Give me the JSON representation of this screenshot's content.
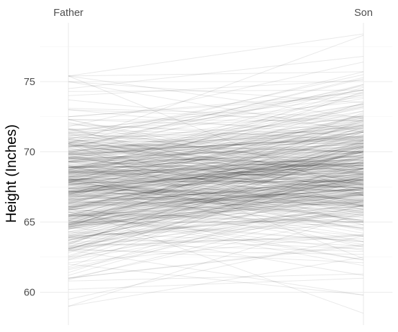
{
  "chart_data": {
    "type": "line",
    "subtype": "parallel-coordinates (slope chart)",
    "title": "",
    "xlabel": "",
    "ylabel": "Height (Inches)",
    "categories": [
      "Father",
      "Son"
    ],
    "yticks": [
      60,
      65,
      70,
      75
    ],
    "ylim": [
      58.5,
      78.8
    ],
    "grid": true,
    "line_color": "#000000",
    "line_alpha": 0.09,
    "n_pairs": 465,
    "series_summary": {
      "Father": {
        "min": 59.0,
        "max": 75.4,
        "mean": 67.7
      },
      "Son": {
        "min": 58.5,
        "max": 78.4,
        "mean": 68.7
      }
    },
    "sample_pairs": [
      [
        59.0,
        62.5
      ],
      [
        59.5,
        64.0
      ],
      [
        60.2,
        61.0
      ],
      [
        61.0,
        65.5
      ],
      [
        62.0,
        59.8
      ],
      [
        63.0,
        66.2
      ],
      [
        64.0,
        65.0
      ],
      [
        65.0,
        67.5
      ],
      [
        65.5,
        63.0
      ],
      [
        66.0,
        68.3
      ],
      [
        66.5,
        66.9
      ],
      [
        67.0,
        70.1
      ],
      [
        67.5,
        68.0
      ],
      [
        68.0,
        69.2
      ],
      [
        68.5,
        71.0
      ],
      [
        69.0,
        67.4
      ],
      [
        69.5,
        70.3
      ],
      [
        70.0,
        72.0
      ],
      [
        70.5,
        69.6
      ],
      [
        71.0,
        71.5
      ],
      [
        71.5,
        73.9
      ],
      [
        72.0,
        70.8
      ],
      [
        72.5,
        74.2
      ],
      [
        73.0,
        72.2
      ],
      [
        74.0,
        75.1
      ],
      [
        74.5,
        76.8
      ],
      [
        75.0,
        73.5
      ],
      [
        75.4,
        78.4
      ],
      [
        66.0,
        58.5
      ],
      [
        63.0,
        59.8
      ]
    ]
  }
}
